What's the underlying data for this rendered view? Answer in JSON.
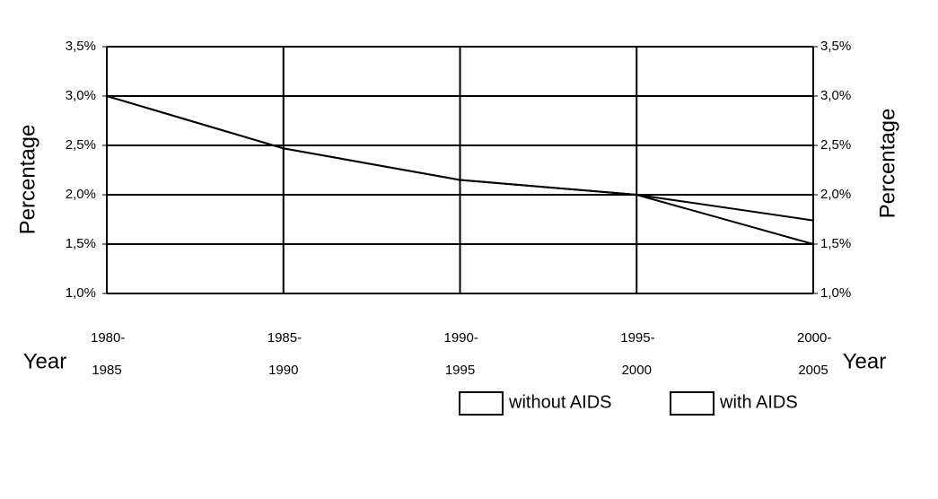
{
  "chart_data": {
    "type": "line",
    "categories": [
      "1980-1985",
      "1985-1990",
      "1990-1995",
      "1995-2000",
      "2000-2005"
    ],
    "series": [
      {
        "name": "without AIDS",
        "color": "#000000",
        "values": [
          3.0,
          2.47,
          2.15,
          2.0,
          1.74
        ]
      },
      {
        "name": "with AIDS",
        "color": "#000000",
        "values": [
          3.0,
          2.47,
          2.15,
          2.0,
          1.5
        ]
      }
    ],
    "ylim": [
      1.0,
      3.5
    ],
    "yticks": [
      {
        "value": 1.0,
        "label": "1,0%"
      },
      {
        "value": 1.5,
        "label": "1,5%"
      },
      {
        "value": 2.0,
        "label": "2,0%"
      },
      {
        "value": 2.5,
        "label": "2,5%"
      },
      {
        "value": 3.0,
        "label": "3,0%"
      },
      {
        "value": 3.5,
        "label": "3,5%"
      }
    ],
    "y2lim": [
      1.0,
      3.5
    ],
    "y2ticks": [
      {
        "value": 1.0,
        "label": "1,0%"
      },
      {
        "value": 1.5,
        "label": "1,5%"
      },
      {
        "value": 2.0,
        "label": "2,0%"
      },
      {
        "value": 2.5,
        "label": "2,5%"
      },
      {
        "value": 3.0,
        "label": "3,0%"
      },
      {
        "value": 3.5,
        "label": "3,5%"
      }
    ],
    "y_label": "Percentage",
    "y2_label": "Percentage",
    "x_label": "Year",
    "grid": true,
    "legend": "bottom"
  }
}
